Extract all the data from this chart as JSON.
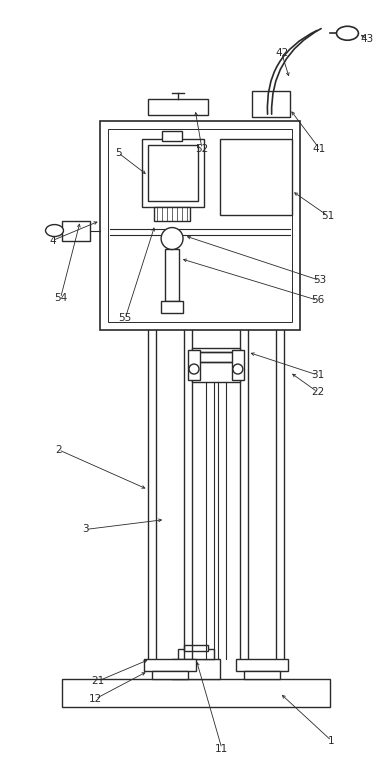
{
  "bg_color": "#ffffff",
  "line_color": "#2a2a2a",
  "lw": 1.0,
  "fig_width": 3.9,
  "fig_height": 7.66
}
